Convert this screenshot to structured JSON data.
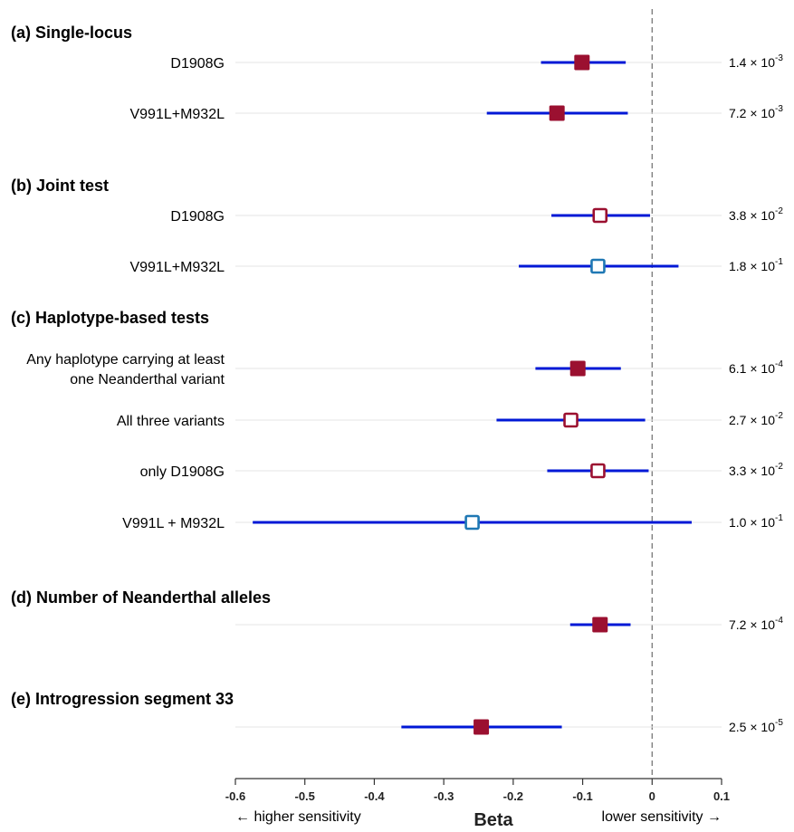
{
  "chart_data": {
    "type": "forest",
    "xlabel": "Beta",
    "xlim": [
      -0.6,
      0.1
    ],
    "xticks": [
      "-0.6",
      "-0.5",
      "-0.4",
      "-0.3",
      "-0.2",
      "-0.1",
      "0",
      "0.1"
    ],
    "reference_line": 0,
    "direction_labels": {
      "left": "← higher sensitivity",
      "right": "lower sensitivity →"
    },
    "colors": {
      "ci_line": "#0018d6",
      "significant_fill": "#9b1030",
      "nominal_outline": "#9b1030",
      "nonsignificant_outline": "#1f78b4",
      "row_line": "#e6e6e6",
      "reference_line": "#777777"
    },
    "sections": [
      {
        "title": "(a) Single-locus",
        "rows": [
          {
            "label": [
              "D1908G"
            ],
            "beta": -0.101,
            "ci": [
              -0.16,
              -0.038
            ],
            "p_mant": "1.4",
            "p_exp": "-3",
            "marker": "significant"
          },
          {
            "label": [
              "V991L+M932L"
            ],
            "beta": -0.137,
            "ci": [
              -0.238,
              -0.035
            ],
            "p_mant": "7.2",
            "p_exp": "-3",
            "marker": "significant"
          }
        ]
      },
      {
        "title": "(b) Joint test",
        "rows": [
          {
            "label": [
              "D1908G"
            ],
            "beta": -0.075,
            "ci": [
              -0.145,
              -0.003
            ],
            "p_mant": "3.8",
            "p_exp": "-2",
            "marker": "nominal"
          },
          {
            "label": [
              "V991L+M932L"
            ],
            "beta": -0.078,
            "ci": [
              -0.192,
              0.038
            ],
            "p_mant": "1.8",
            "p_exp": "-1",
            "marker": "nonsignificant"
          }
        ]
      },
      {
        "title": "(c) Haplotype-based tests",
        "rows": [
          {
            "label": [
              "Any haplotype carrying at least",
              "one Neanderthal variant"
            ],
            "beta": -0.107,
            "ci": [
              -0.168,
              -0.045
            ],
            "p_mant": "6.1",
            "p_exp": "-4",
            "marker": "significant"
          },
          {
            "label": [
              "All three variants"
            ],
            "beta": -0.117,
            "ci": [
              -0.224,
              -0.01
            ],
            "p_mant": "2.7",
            "p_exp": "-2",
            "marker": "nominal"
          },
          {
            "label": [
              "only D1908G"
            ],
            "beta": -0.078,
            "ci": [
              -0.151,
              -0.005
            ],
            "p_mant": "3.3",
            "p_exp": "-2",
            "marker": "nominal"
          },
          {
            "label": [
              "V991L + M932L"
            ],
            "beta": -0.259,
            "ci": [
              -0.575,
              0.057
            ],
            "p_mant": "1.0",
            "p_exp": "-1",
            "marker": "nonsignificant"
          }
        ]
      },
      {
        "title": "(d) Number of Neanderthal alleles",
        "rows": [
          {
            "label": [
              ""
            ],
            "beta": -0.075,
            "ci": [
              -0.118,
              -0.031
            ],
            "p_mant": "7.2",
            "p_exp": "-4",
            "marker": "significant"
          }
        ]
      },
      {
        "title": "(e) Introgression segment 33",
        "rows": [
          {
            "label": [
              ""
            ],
            "beta": -0.246,
            "ci": [
              -0.361,
              -0.13
            ],
            "p_mant": "2.5",
            "p_exp": "-5",
            "marker": "significant"
          }
        ]
      }
    ]
  }
}
